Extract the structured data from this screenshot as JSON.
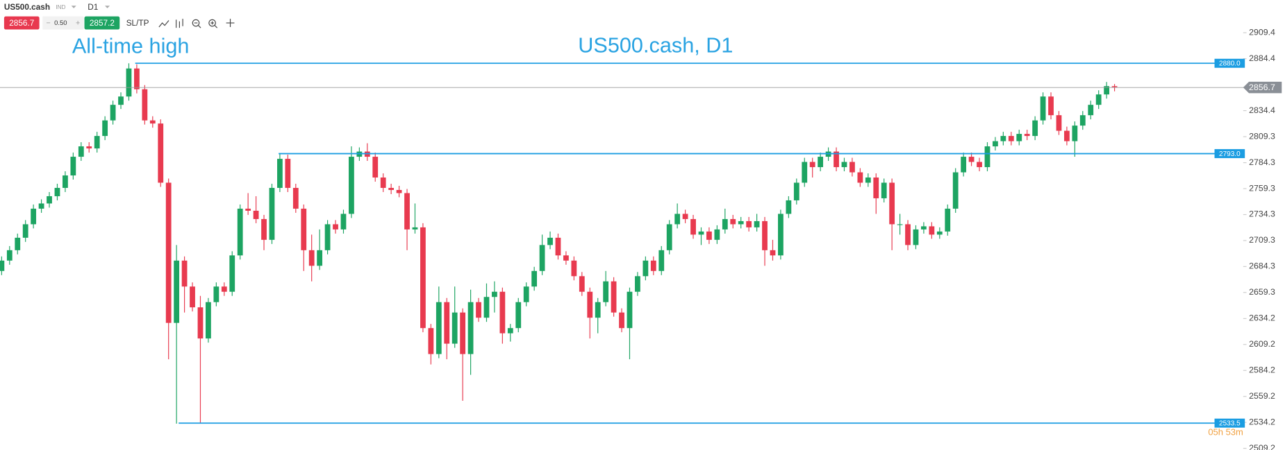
{
  "chart_data": {
    "type": "candlestick",
    "title": "US500.cash, D1",
    "annotation": "All-time high",
    "toolbar": {
      "symbol": "US500.cash",
      "category": "IND",
      "timeframe": "D1",
      "bid": 2856.7,
      "spread": {
        "value": 0.5,
        "label": "0.50"
      },
      "ask": 2857.2,
      "minus": "−",
      "plus": "+",
      "sltp": "SL/TP"
    },
    "timer": "05h 53m",
    "ylim": [
      2509.2,
      2909.4
    ],
    "yticks": [
      2909.4,
      2884.4,
      2834.4,
      2809.3,
      2784.3,
      2759.3,
      2734.3,
      2709.3,
      2684.3,
      2659.3,
      2634.2,
      2609.2,
      2584.2,
      2559.2,
      2534.2,
      2509.2
    ],
    "current_price": 2856.7,
    "levels": [
      {
        "value": 2880.0,
        "label": "2880.0"
      },
      {
        "value": 2793.0,
        "label": "2793.0"
      },
      {
        "value": 2533.5,
        "label": "2533.5"
      }
    ],
    "up_color": "#1da462",
    "down_color": "#e83a4f",
    "level_color": "#1b9de2",
    "candles": [
      [
        2680,
        2694,
        2676,
        2690
      ],
      [
        2690,
        2704,
        2686,
        2700
      ],
      [
        2700,
        2716,
        2696,
        2712
      ],
      [
        2712,
        2729,
        2708,
        2725
      ],
      [
        2725,
        2744,
        2721,
        2740
      ],
      [
        2740,
        2749,
        2736,
        2745
      ],
      [
        2745,
        2756,
        2741,
        2752
      ],
      [
        2752,
        2764,
        2748,
        2760
      ],
      [
        2760,
        2776,
        2756,
        2772
      ],
      [
        2772,
        2794,
        2768,
        2790
      ],
      [
        2790,
        2804,
        2786,
        2800
      ],
      [
        2800,
        2804,
        2794,
        2798
      ],
      [
        2798,
        2814,
        2794,
        2810
      ],
      [
        2810,
        2829,
        2806,
        2825
      ],
      [
        2825,
        2844,
        2821,
        2840
      ],
      [
        2840,
        2852,
        2836,
        2848
      ],
      [
        2848,
        2880,
        2844,
        2875
      ],
      [
        2875,
        2879,
        2851,
        2855
      ],
      [
        2855,
        2859,
        2821,
        2825
      ],
      [
        2825,
        2829,
        2818,
        2822
      ],
      [
        2822,
        2826,
        2761,
        2765
      ],
      [
        2765,
        2769,
        2595,
        2630
      ],
      [
        2630,
        2705,
        2533,
        2690
      ],
      [
        2690,
        2694,
        2640,
        2665
      ],
      [
        2665,
        2669,
        2641,
        2645
      ],
      [
        2645,
        2656,
        2533,
        2615
      ],
      [
        2615,
        2654,
        2611,
        2650
      ],
      [
        2650,
        2669,
        2646,
        2665
      ],
      [
        2665,
        2669,
        2656,
        2660
      ],
      [
        2660,
        2699,
        2656,
        2695
      ],
      [
        2695,
        2744,
        2691,
        2740
      ],
      [
        2740,
        2755,
        2734,
        2738
      ],
      [
        2738,
        2752,
        2726,
        2730
      ],
      [
        2730,
        2734,
        2700,
        2710
      ],
      [
        2710,
        2764,
        2706,
        2760
      ],
      [
        2760,
        2793,
        2756,
        2788
      ],
      [
        2788,
        2792,
        2756,
        2760
      ],
      [
        2760,
        2764,
        2736,
        2740
      ],
      [
        2740,
        2744,
        2680,
        2700
      ],
      [
        2700,
        2715,
        2670,
        2685
      ],
      [
        2685,
        2720,
        2681,
        2700
      ],
      [
        2700,
        2729,
        2696,
        2725
      ],
      [
        2725,
        2729,
        2716,
        2720
      ],
      [
        2720,
        2739,
        2716,
        2735
      ],
      [
        2735,
        2800,
        2731,
        2790
      ],
      [
        2790,
        2799,
        2786,
        2795
      ],
      [
        2795,
        2803,
        2786,
        2790
      ],
      [
        2790,
        2794,
        2766,
        2770
      ],
      [
        2770,
        2774,
        2756,
        2760
      ],
      [
        2760,
        2764,
        2754,
        2758
      ],
      [
        2758,
        2762,
        2751,
        2755
      ],
      [
        2755,
        2759,
        2700,
        2720
      ],
      [
        2720,
        2745,
        2716,
        2722
      ],
      [
        2722,
        2726,
        2621,
        2625
      ],
      [
        2625,
        2629,
        2590,
        2600
      ],
      [
        2600,
        2665,
        2596,
        2650
      ],
      [
        2650,
        2654,
        2595,
        2610
      ],
      [
        2610,
        2665,
        2606,
        2640
      ],
      [
        2640,
        2644,
        2555,
        2600
      ],
      [
        2600,
        2662,
        2580,
        2650
      ],
      [
        2650,
        2654,
        2631,
        2635
      ],
      [
        2635,
        2668,
        2631,
        2655
      ],
      [
        2655,
        2670,
        2640,
        2660
      ],
      [
        2660,
        2664,
        2610,
        2620
      ],
      [
        2620,
        2629,
        2612,
        2625
      ],
      [
        2625,
        2654,
        2621,
        2650
      ],
      [
        2650,
        2669,
        2646,
        2665
      ],
      [
        2665,
        2684,
        2661,
        2680
      ],
      [
        2680,
        2715,
        2676,
        2705
      ],
      [
        2705,
        2718,
        2701,
        2712
      ],
      [
        2712,
        2716,
        2691,
        2695
      ],
      [
        2695,
        2699,
        2686,
        2690
      ],
      [
        2690,
        2694,
        2671,
        2675
      ],
      [
        2675,
        2679,
        2656,
        2660
      ],
      [
        2660,
        2664,
        2615,
        2635
      ],
      [
        2635,
        2654,
        2620,
        2650
      ],
      [
        2650,
        2680,
        2646,
        2670
      ],
      [
        2670,
        2674,
        2636,
        2640
      ],
      [
        2640,
        2644,
        2621,
        2625
      ],
      [
        2625,
        2664,
        2595,
        2660
      ],
      [
        2660,
        2679,
        2656,
        2675
      ],
      [
        2675,
        2694,
        2671,
        2690
      ],
      [
        2690,
        2694,
        2676,
        2680
      ],
      [
        2680,
        2704,
        2676,
        2700
      ],
      [
        2700,
        2729,
        2696,
        2725
      ],
      [
        2725,
        2745,
        2721,
        2735
      ],
      [
        2735,
        2739,
        2726,
        2730
      ],
      [
        2730,
        2734,
        2711,
        2715
      ],
      [
        2715,
        2722,
        2705,
        2718
      ],
      [
        2718,
        2722,
        2706,
        2710
      ],
      [
        2710,
        2724,
        2706,
        2720
      ],
      [
        2720,
        2740,
        2716,
        2730
      ],
      [
        2730,
        2734,
        2721,
        2725
      ],
      [
        2725,
        2732,
        2721,
        2728
      ],
      [
        2728,
        2732,
        2718,
        2722
      ],
      [
        2722,
        2735,
        2718,
        2728
      ],
      [
        2728,
        2732,
        2685,
        2700
      ],
      [
        2700,
        2710,
        2690,
        2695
      ],
      [
        2695,
        2739,
        2691,
        2735
      ],
      [
        2735,
        2752,
        2731,
        2748
      ],
      [
        2748,
        2769,
        2744,
        2765
      ],
      [
        2765,
        2789,
        2761,
        2785
      ],
      [
        2785,
        2789,
        2770,
        2780
      ],
      [
        2780,
        2794,
        2776,
        2790
      ],
      [
        2790,
        2799,
        2786,
        2795
      ],
      [
        2795,
        2799,
        2776,
        2780
      ],
      [
        2780,
        2789,
        2776,
        2785
      ],
      [
        2785,
        2789,
        2771,
        2775
      ],
      [
        2775,
        2779,
        2761,
        2765
      ],
      [
        2765,
        2774,
        2761,
        2770
      ],
      [
        2770,
        2774,
        2735,
        2750
      ],
      [
        2750,
        2769,
        2746,
        2765
      ],
      [
        2765,
        2769,
        2700,
        2725
      ],
      [
        2725,
        2735,
        2715,
        2725
      ],
      [
        2725,
        2729,
        2700,
        2705
      ],
      [
        2705,
        2724,
        2701,
        2720
      ],
      [
        2720,
        2727,
        2716,
        2723
      ],
      [
        2723,
        2727,
        2711,
        2715
      ],
      [
        2715,
        2722,
        2711,
        2718
      ],
      [
        2718,
        2744,
        2714,
        2740
      ],
      [
        2740,
        2779,
        2736,
        2775
      ],
      [
        2775,
        2794,
        2771,
        2790
      ],
      [
        2790,
        2794,
        2781,
        2785
      ],
      [
        2785,
        2789,
        2776,
        2780
      ],
      [
        2780,
        2804,
        2776,
        2800
      ],
      [
        2800,
        2809,
        2796,
        2805
      ],
      [
        2805,
        2814,
        2801,
        2810
      ],
      [
        2810,
        2814,
        2801,
        2805
      ],
      [
        2805,
        2816,
        2801,
        2812
      ],
      [
        2812,
        2816,
        2806,
        2810
      ],
      [
        2810,
        2829,
        2806,
        2825
      ],
      [
        2825,
        2852,
        2821,
        2848
      ],
      [
        2848,
        2852,
        2826,
        2830
      ],
      [
        2830,
        2834,
        2811,
        2815
      ],
      [
        2815,
        2819,
        2801,
        2805
      ],
      [
        2805,
        2824,
        2790,
        2820
      ],
      [
        2820,
        2834,
        2816,
        2830
      ],
      [
        2830,
        2844,
        2826,
        2840
      ],
      [
        2840,
        2854,
        2836,
        2850
      ],
      [
        2850,
        2862,
        2846,
        2858
      ],
      [
        2858,
        2860,
        2853,
        2857
      ]
    ]
  }
}
